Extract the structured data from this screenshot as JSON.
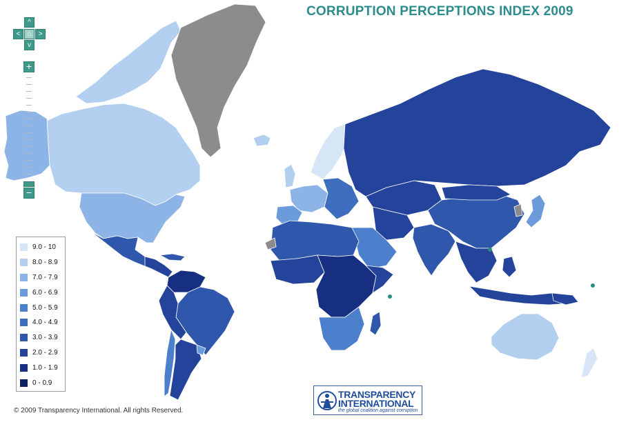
{
  "title": "CORRUPTION PERCEPTIONS INDEX 2009",
  "controls": {
    "pan_up_icon": "^",
    "pan_left_icon": "<",
    "pan_home_icon": "⌂",
    "pan_right_icon": ">",
    "pan_down_icon": "v",
    "zoom_in_icon": "+",
    "zoom_out_icon": "−"
  },
  "legend": {
    "items": [
      {
        "label": "9.0 - 10",
        "color": "#d6e6f7"
      },
      {
        "label": "8.0 - 8.9",
        "color": "#b3cff0"
      },
      {
        "label": "7.0 - 7.9",
        "color": "#8db4e6"
      },
      {
        "label": "6.0 - 6.9",
        "color": "#6b9bdb"
      },
      {
        "label": "5.0 - 5.9",
        "color": "#4d80cc"
      },
      {
        "label": "4.0 - 4.9",
        "color": "#3f6dbd"
      },
      {
        "label": "3.0 - 3.9",
        "color": "#2f57ab"
      },
      {
        "label": "2.0 - 2.9",
        "color": "#24449b"
      },
      {
        "label": "1.0 - 1.9",
        "color": "#172f80"
      },
      {
        "label": "0 - 0.9",
        "color": "#0f2360"
      }
    ]
  },
  "no_data_color": "#8c8c8c",
  "marker_color": "#2a8c80",
  "copyright": "© 2009 Transparency International. All rights Reserved.",
  "logo": {
    "word1": "TRANSPARENCY",
    "word2": "INTERNATIONAL",
    "tagline": "the global coalition against corruption"
  }
}
